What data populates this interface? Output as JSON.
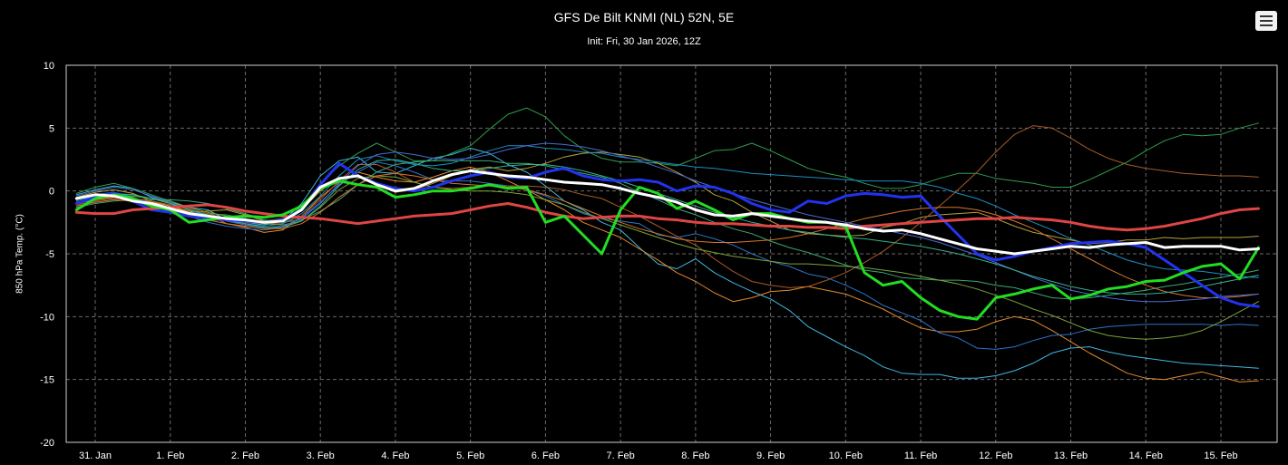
{
  "menu": {
    "icon": "hamburger-menu-icon"
  },
  "chart_data": {
    "type": "line",
    "title": "GFS De Bilt KNMI (NL) 52N, 5E",
    "subtitle": "Init: Fri, 30 Jan 2026, 12Z",
    "xlabel": "",
    "ylabel": "850 hPa Temp. (°C)",
    "ylim": [
      -20,
      10
    ],
    "yticks": [
      10,
      5,
      0,
      -5,
      -10,
      -15,
      -20
    ],
    "xlim": [
      -0.5,
      15.6
    ],
    "xtick_labels": [
      "31. Jan",
      "1. Feb",
      "2. Feb",
      "3. Feb",
      "4. Feb",
      "5. Feb",
      "6. Feb",
      "7. Feb",
      "8. Feb",
      "9. Feb",
      "10. Feb",
      "11. Feb",
      "12. Feb",
      "13. Feb",
      "14. Feb",
      "15. Feb"
    ],
    "grid": true,
    "legend": "none",
    "x": [
      -0.25,
      0,
      0.25,
      0.5,
      0.75,
      1,
      1.25,
      1.5,
      1.75,
      2,
      2.25,
      2.5,
      2.75,
      3,
      3.25,
      3.5,
      3.75,
      4,
      4.25,
      4.5,
      4.75,
      5,
      5.25,
      5.5,
      5.75,
      6,
      6.25,
      6.5,
      6.75,
      7,
      7.25,
      7.5,
      7.75,
      8,
      8.25,
      8.5,
      8.75,
      9,
      9.25,
      9.5,
      9.75,
      10,
      10.25,
      10.5,
      10.75,
      11,
      11.25,
      11.5,
      11.75,
      12,
      12.25,
      12.5,
      12.75,
      13,
      13.25,
      13.5,
      13.75,
      14,
      14.25,
      14.5,
      14.75,
      15,
      15.25,
      15.5
    ],
    "series": [
      {
        "role": "mean",
        "color": "#ffffff",
        "width": 3,
        "values": [
          -0.6,
          -0.3,
          -0.4,
          -0.8,
          -1,
          -1.4,
          -1.8,
          -2,
          -2.2,
          -2.3,
          -2.5,
          -2.4,
          -1.5,
          0.3,
          1,
          1.2,
          0.5,
          0,
          0.2,
          0.8,
          1.3,
          1.6,
          1.4,
          1.2,
          1.1,
          0.9,
          0.7,
          0.6,
          0.5,
          0.2,
          -0.2,
          -0.5,
          -0.9,
          -1.5,
          -1.9,
          -2,
          -1.8,
          -2,
          -2.2,
          -2.4,
          -2.5,
          -2.7,
          -3,
          -3.2,
          -3.1,
          -3.4,
          -3.8,
          -4.2,
          -4.6,
          -4.8,
          -5,
          -4.8,
          -4.6,
          -4.4,
          -4.5,
          -4.3,
          -4.2,
          -4.1,
          -4.5,
          -4.4,
          -4.4,
          -4.4,
          -4.7,
          -4.6
        ]
      },
      {
        "role": "operational",
        "color": "#22dd22",
        "width": 3,
        "values": [
          -1.5,
          -0.6,
          -0.3,
          -0.6,
          -1.2,
          -1.5,
          -2.5,
          -2.3,
          -2.1,
          -2,
          -2.1,
          -1.9,
          -1.2,
          0.2,
          0.8,
          0.5,
          0.3,
          -0.5,
          -0.3,
          0,
          0,
          0.2,
          0.5,
          0.2,
          0.3,
          -2.5,
          -2,
          -3.5,
          -5,
          -1.5,
          0.3,
          -0.2,
          -1.4,
          -0.8,
          -1.5,
          -2.3,
          -1.8,
          -1.8,
          -2.2,
          -2.5,
          -2.5,
          -2.8,
          -6.5,
          -7.5,
          -7.2,
          -8.5,
          -9.5,
          -10,
          -10.2,
          -8.5,
          -8.2,
          -7.8,
          -7.5,
          -8.6,
          -8.3,
          -7.8,
          -7.6,
          -7.2,
          -7.1,
          -6.5,
          -6,
          -5.8,
          -7,
          -4.5
        ]
      },
      {
        "role": "control",
        "color": "#e04545",
        "width": 3,
        "values": [
          -1.7,
          -1.8,
          -1.8,
          -1.5,
          -1.4,
          -1.3,
          -1.2,
          -1.1,
          -1.3,
          -1.6,
          -1.8,
          -2,
          -2.1,
          -2.2,
          -2.4,
          -2.6,
          -2.4,
          -2.2,
          -2,
          -1.9,
          -1.8,
          -1.5,
          -1.2,
          -1,
          -1.3,
          -1.7,
          -2,
          -2.2,
          -2.1,
          -2,
          -2,
          -2.2,
          -2.3,
          -2.5,
          -2.6,
          -2.6,
          -2.7,
          -2.8,
          -2.8,
          -2.9,
          -2.9,
          -3,
          -2.8,
          -2.7,
          -2.6,
          -2.5,
          -2.4,
          -2.3,
          -2.2,
          -2.2,
          -2.1,
          -2.2,
          -2.3,
          -2.5,
          -2.8,
          -3,
          -3.1,
          -3,
          -2.8,
          -2.5,
          -2.2,
          -1.8,
          -1.5,
          -1.4
        ]
      },
      {
        "role": "member",
        "color": "#2233ee",
        "width": 3,
        "values": [
          -1,
          -0.5,
          -0.2,
          -0.8,
          -1.5,
          -1.7,
          -2,
          -2.2,
          -2.3,
          -2.4,
          -2.5,
          -2.3,
          -1.5,
          0.5,
          2.2,
          1.2,
          0.6,
          0.2,
          0,
          0.3,
          0.8,
          1.2,
          1.5,
          1.1,
          1,
          1.5,
          1.8,
          1.2,
          0.9,
          0.8,
          0.9,
          0.7,
          0,
          0.4,
          0.3,
          -0.2,
          -1,
          -1.5,
          -1.7,
          -0.8,
          -1,
          -0.4,
          -0.2,
          -0.3,
          -0.5,
          -0.4,
          -2,
          -3.5,
          -5,
          -5.5,
          -5.2,
          -4.8,
          -4.5,
          -4.2,
          -4.1,
          -4,
          -4.2,
          -4.5,
          -5.5,
          -6.5,
          -7.5,
          -8.5,
          -9,
          -9.2
        ]
      },
      {
        "role": "member",
        "color": "#3fb7e0",
        "width": 1,
        "values": [
          -0.3,
          0.1,
          0.4,
          0.2,
          -0.5,
          -0.8,
          -1.3,
          -1.5,
          -2.3,
          -2.5,
          -2.7,
          -2.4,
          -1,
          1.2,
          2.4,
          2.7,
          1.5,
          1.4,
          2,
          2.6,
          2.9,
          3.4,
          3,
          2.1,
          1.5,
          0.4,
          -0.8,
          -1.5,
          -2.5,
          -3.1,
          -4.5,
          -5.8,
          -6.2,
          -5.4,
          -6.5,
          -7.3,
          -8,
          -8.6,
          -9.5,
          -10.8,
          -11.6,
          -12.4,
          -13.1,
          -14,
          -14.5,
          -14.6,
          -14.6,
          -14.9,
          -14.9,
          -14.7,
          -14.3,
          -13.7,
          -12.9,
          -12.5,
          -12.4,
          -12.8,
          -13.1,
          -13.3,
          -13.5,
          -13.7,
          -13.8,
          -13.9,
          -14,
          -14.1
        ]
      },
      {
        "role": "member",
        "color": "#e58a2d",
        "width": 1,
        "values": [
          -1,
          -0.7,
          -0.5,
          -0.6,
          -0.9,
          -1.2,
          -1.6,
          -1.9,
          -2.6,
          -2.9,
          -3.3,
          -3.1,
          -2,
          -0.5,
          0.7,
          1.5,
          1.1,
          0.8,
          0.7,
          1.1,
          1.6,
          1.9,
          1.5,
          0.8,
          0.1,
          -0.7,
          -1.5,
          -2.5,
          -3.1,
          -3.7,
          -4.6,
          -5.5,
          -6.5,
          -7.2,
          -8.1,
          -8.8,
          -8.5,
          -8,
          -7.9,
          -7.6,
          -7.9,
          -8.2,
          -8.8,
          -9.4,
          -10.2,
          -10.9,
          -11.2,
          -11.2,
          -11,
          -10.4,
          -10,
          -10.3,
          -11.1,
          -12,
          -12.9,
          -13.7,
          -14.5,
          -14.9,
          -15,
          -14.7,
          -14.4,
          -14.8,
          -15.2,
          -15.1
        ]
      },
      {
        "role": "member",
        "color": "#2f9e4f",
        "width": 1,
        "values": [
          -0.2,
          0.3,
          0.6,
          0.2,
          -0.3,
          -0.8,
          -1.4,
          -1.8,
          -1.9,
          -2.2,
          -2.5,
          -2.3,
          -1.3,
          0.6,
          2,
          3,
          3.8,
          3.1,
          2.4,
          2.4,
          3,
          3.6,
          4.9,
          6.1,
          6.6,
          5.9,
          4.4,
          3.3,
          2.6,
          2.3,
          2.3,
          2.2,
          2,
          2.6,
          3.2,
          3.3,
          3.8,
          3.2,
          2.5,
          1.8,
          1.4,
          1.1,
          0.6,
          0.2,
          0.2,
          0.5,
          1,
          1.4,
          1.4,
          1,
          0.8,
          0.6,
          0.3,
          0.3,
          0.9,
          1.6,
          2.3,
          3.2,
          4,
          4.5,
          4.4,
          4.5,
          5,
          5.4
        ]
      },
      {
        "role": "member",
        "color": "#b7a13c",
        "width": 1,
        "values": [
          -0.5,
          -0.1,
          0.1,
          -0.2,
          -0.8,
          -1.2,
          -1.7,
          -1.6,
          -1.5,
          -1.9,
          -2.4,
          -2.2,
          -1.5,
          0,
          1,
          1.3,
          0.5,
          -0.1,
          0.1,
          0.6,
          1.2,
          1.7,
          1.9,
          1.6,
          1.8,
          2.2,
          2.7,
          3,
          3.1,
          2.9,
          2.7,
          2.2,
          1.5,
          0.7,
          -0.3,
          -0.8,
          -1.7,
          -2.4,
          -3.1,
          -3.4,
          -3.5,
          -3.6,
          -3.5,
          -2.9,
          -2.6,
          -2.1,
          -1.9,
          -1.8,
          -1.7,
          -2.2,
          -2.8,
          -3.3,
          -3.6,
          -3.9,
          -4.2,
          -4.1,
          -3.9,
          -3.9,
          -3.7,
          -3.8,
          -3.7,
          -3.7,
          -3.7,
          -3.6
        ]
      },
      {
        "role": "member",
        "color": "#2d74c9",
        "width": 1,
        "values": [
          -0.7,
          -0.3,
          -0.1,
          -0.5,
          -1,
          -1.5,
          -2,
          -2.5,
          -2.8,
          -3,
          -3.1,
          -2.9,
          -2.1,
          -0.9,
          0.5,
          1.5,
          2.3,
          2,
          1.5,
          0.9,
          0.8,
          0.8,
          0.6,
          0.4,
          0.1,
          -0.4,
          -1.1,
          -1.8,
          -2.2,
          -2.4,
          -2.6,
          -3.5,
          -3.7,
          -3.4,
          -3.8,
          -4.3,
          -5,
          -5.6,
          -6,
          -6.6,
          -6.9,
          -7.5,
          -8.2,
          -9.1,
          -9.7,
          -10.3,
          -11.3,
          -11.7,
          -12.5,
          -12.6,
          -12.4,
          -11.9,
          -11.5,
          -11.4,
          -11,
          -10.8,
          -10.7,
          -10.6,
          -10.6,
          -10.6,
          -10.6,
          -10.7,
          -10.6,
          -10.7
        ]
      },
      {
        "role": "member",
        "color": "#3ca875",
        "width": 1,
        "values": [
          -1.3,
          -1,
          -0.8,
          -0.7,
          -0.7,
          -0.7,
          -0.8,
          -1,
          -1.4,
          -1.8,
          -2.3,
          -2.5,
          -2.3,
          -1.6,
          -0.7,
          0.5,
          1.5,
          2.1,
          2.3,
          2.4,
          2.4,
          2.4,
          2.4,
          2.2,
          2.2,
          2,
          1.7,
          1.4,
          1.1,
          0.6,
          -0.1,
          -0.7,
          -1.4,
          -1.9,
          -2.5,
          -3,
          -3.4,
          -4,
          -4.5,
          -4.9,
          -5.4,
          -5.9,
          -6.3,
          -6.5,
          -6.9,
          -7,
          -7.1,
          -7.1,
          -7.2,
          -7.5,
          -7.7,
          -8.1,
          -8.5,
          -8.6,
          -8.5,
          -8.3,
          -8.1,
          -7.9,
          -7.6,
          -7.4,
          -7.1,
          -6.9,
          -6.6,
          -6.3
        ]
      },
      {
        "role": "member",
        "color": "#a85a2a",
        "width": 1,
        "values": [
          -1.1,
          -0.8,
          -0.6,
          -0.6,
          -0.8,
          -1.1,
          -1.4,
          -1.8,
          -2.2,
          -2.5,
          -2.6,
          -2.6,
          -2,
          -0.7,
          0.8,
          2.1,
          2.1,
          1.5,
          0.7,
          0.3,
          0.2,
          0.3,
          0.4,
          0.4,
          0.4,
          0.3,
          0.1,
          -0.3,
          -0.6,
          -1.3,
          -2,
          -2.8,
          -3.6,
          -4.3,
          -5.4,
          -6.4,
          -7.2,
          -7.5,
          -7.7,
          -7.6,
          -7.1,
          -6.5,
          -5.7,
          -4.8,
          -3.7,
          -2.5,
          -1.2,
          0.1,
          1.5,
          3.1,
          4.5,
          5.2,
          5,
          4.2,
          3.3,
          2.6,
          2.1,
          1.8,
          1.6,
          1.4,
          1.3,
          1.2,
          1.2,
          1.1
        ]
      },
      {
        "role": "member",
        "color": "#1b8fc2",
        "width": 1,
        "values": [
          -0.8,
          -0.4,
          -0.2,
          -0.3,
          -0.6,
          -1,
          -1.5,
          -2,
          -2.4,
          -2.6,
          -2.8,
          -2.6,
          -1.8,
          -0.4,
          1.2,
          2.5,
          2.8,
          2.4,
          2.1,
          2,
          2.2,
          2.7,
          3.2,
          3.6,
          3.6,
          3.4,
          3.3,
          3.1,
          3,
          2.7,
          2.5,
          2.3,
          2.1,
          1.9,
          1.8,
          1.6,
          1.4,
          1.3,
          1.2,
          1.1,
          1,
          0.9,
          0.8,
          0.8,
          0.8,
          0.6,
          0.3,
          -0.2,
          -0.6,
          -1.2,
          -1.9,
          -2.5,
          -3.1,
          -3.8,
          -4.3,
          -4.9,
          -5.5,
          -5.9,
          -6.2,
          -6.3,
          -6.4,
          -6.6,
          -6.8,
          -6.9
        ]
      },
      {
        "role": "member",
        "color": "#7aa33a",
        "width": 1,
        "values": [
          -0.9,
          -0.6,
          -0.4,
          -0.4,
          -0.6,
          -0.9,
          -1.3,
          -1.7,
          -2,
          -2.3,
          -2.6,
          -2.7,
          -2.4,
          -1.3,
          0.1,
          1,
          1.2,
          1.1,
          0.7,
          0.3,
          0.1,
          0,
          0,
          -0.1,
          -0.3,
          -0.7,
          -1.1,
          -1.7,
          -2.2,
          -2.7,
          -3.2,
          -3.7,
          -4.2,
          -4.6,
          -4.9,
          -5.2,
          -5.4,
          -5.6,
          -5.8,
          -5.8,
          -5.9,
          -6,
          -6.1,
          -6.3,
          -6.5,
          -6.8,
          -7.1,
          -7.4,
          -7.8,
          -8.3,
          -8.8,
          -9.4,
          -9.9,
          -10.5,
          -11.1,
          -11.5,
          -11.7,
          -11.8,
          -11.7,
          -11.5,
          -11.1,
          -10.4,
          -9.6,
          -8.8
        ]
      },
      {
        "role": "member",
        "color": "#d9762b",
        "width": 1,
        "values": [
          -1.2,
          -0.9,
          -0.7,
          -0.8,
          -1.1,
          -1.5,
          -1.9,
          -2.3,
          -2.6,
          -2.8,
          -3,
          -3,
          -2.6,
          -1.7,
          -0.5,
          0.5,
          1.2,
          1.4,
          1.2,
          0.9,
          0.6,
          0.5,
          0.4,
          0.3,
          0.1,
          -0.3,
          -0.8,
          -1.4,
          -2,
          -2.5,
          -3,
          -3.4,
          -3.8,
          -4,
          -4.1,
          -4.1,
          -4,
          -3.9,
          -3.7,
          -3.4,
          -3,
          -2.6,
          -2.2,
          -1.9,
          -1.6,
          -1.4,
          -1.3,
          -1.3,
          -1.5,
          -1.9,
          -2.4,
          -3,
          -3.8,
          -4.6,
          -5.4,
          -6.2,
          -6.9,
          -7.5,
          -8,
          -8.3,
          -8.5,
          -8.5,
          -8.4,
          -8.2
        ]
      },
      {
        "role": "member",
        "color": "#4a6ad6",
        "width": 1,
        "values": [
          -0.4,
          0,
          0.3,
          0.1,
          -0.4,
          -0.9,
          -1.5,
          -2,
          -2.4,
          -2.7,
          -2.9,
          -2.8,
          -2.2,
          -1,
          0.6,
          2,
          2.9,
          3.1,
          2.9,
          2.6,
          2.5,
          2.6,
          2.9,
          3.3,
          3.6,
          3.8,
          3.7,
          3.5,
          3.2,
          2.8,
          2.4,
          1.9,
          1.4,
          0.8,
          0.3,
          -0.2,
          -0.7,
          -1.1,
          -1.5,
          -1.9,
          -2.2,
          -2.5,
          -2.8,
          -3.1,
          -3.4,
          -3.7,
          -4.1,
          -4.6,
          -5.1,
          -5.7,
          -6.3,
          -6.9,
          -7.4,
          -7.9,
          -8.2,
          -8.5,
          -8.7,
          -8.8,
          -8.8,
          -8.7,
          -8.6,
          -8.4,
          -8.3,
          -8.2
        ]
      },
      {
        "role": "member",
        "color": "#36b090",
        "width": 1,
        "values": [
          -1,
          -0.6,
          -0.3,
          -0.3,
          -0.6,
          -1,
          -1.5,
          -1.9,
          -2.3,
          -2.6,
          -2.9,
          -2.9,
          -2.4,
          -1.2,
          0.4,
          1.7,
          2.4,
          2.5,
          2.2,
          1.8,
          1.6,
          1.6,
          1.8,
          2,
          2.1,
          2.1,
          1.9,
          1.6,
          1.2,
          0.8,
          0.3,
          -0.2,
          -0.7,
          -1.2,
          -1.7,
          -2.1,
          -2.5,
          -2.8,
          -3.1,
          -3.3,
          -3.5,
          -3.7,
          -3.8,
          -4,
          -4.2,
          -4.4,
          -4.7,
          -5,
          -5.4,
          -5.8,
          -6.3,
          -6.8,
          -7.2,
          -7.6,
          -7.9,
          -8.1,
          -8.2,
          -8.2,
          -8.1,
          -7.9,
          -7.6,
          -7.3,
          -7,
          -6.7
        ]
      }
    ]
  }
}
